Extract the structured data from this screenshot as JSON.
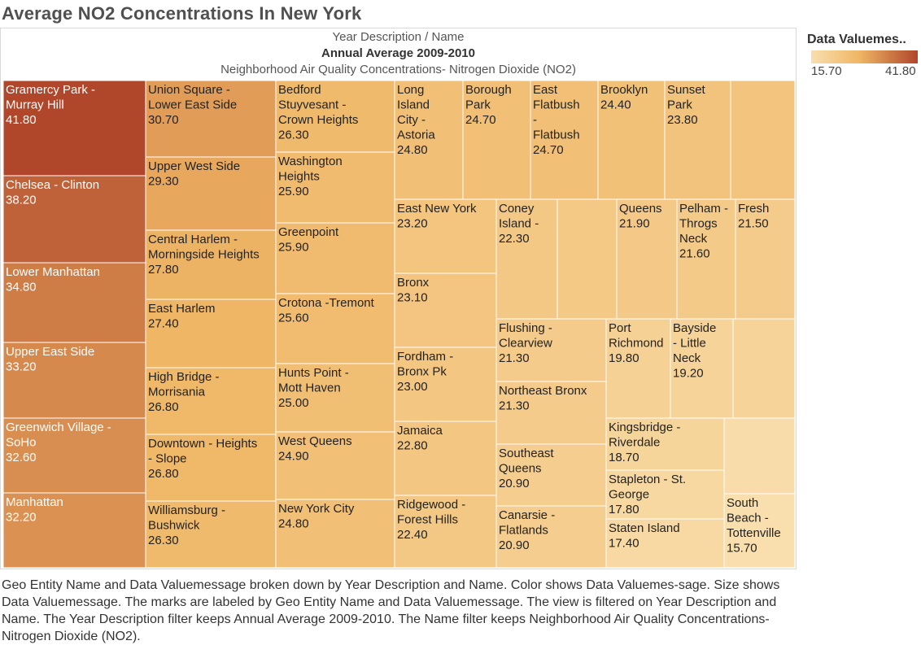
{
  "title": "Average NO2 Concentrations In New York",
  "header": {
    "line1": "Year Description  /  Name",
    "line2": "Annual Average 2009-2010",
    "line3": "Neighborhood Air Quality Concentrations- Nitrogen Dioxide (NO2)"
  },
  "legend": {
    "title": "Data Valuemes..",
    "min": "15.70",
    "max": "41.80"
  },
  "caption": "Geo Entity Name and Data Valuemessage broken down by Year Description and Name.  Color shows Data Valuemes-sage.  Size shows Data Valuemessage.  The marks are labeled by Geo Entity Name and Data Valuemessage. The view is filtered on Year Description and Name. The Year Description filter keeps Annual Average 2009-2010. The Name filter keeps Neighborhood Air Quality Concentrations- Nitrogen Dioxide (NO2).",
  "chart_data": {
    "type": "treemap",
    "color_scale": {
      "min": 15.7,
      "max": 41.8,
      "colors": [
        "#f9dfae",
        "#efb665",
        "#b0462a"
      ]
    },
    "cells": [
      {
        "name": "Gramercy Park - Murray Hill",
        "value": 41.8
      },
      {
        "name": "Chelsea - Clinton",
        "value": 38.2
      },
      {
        "name": "Lower Manhattan",
        "value": 34.8
      },
      {
        "name": "Upper East Side",
        "value": 33.2
      },
      {
        "name": "Greenwich Village - SoHo",
        "value": 32.6
      },
      {
        "name": "Manhattan",
        "value": 32.2
      },
      {
        "name": "Union Square - Lower East Side",
        "value": 30.7
      },
      {
        "name": "Upper West Side",
        "value": 29.3
      },
      {
        "name": "Central Harlem - Morningside Heights",
        "value": 27.8
      },
      {
        "name": "East Harlem",
        "value": 27.4
      },
      {
        "name": "High Bridge - Morrisania",
        "value": 26.8
      },
      {
        "name": "Downtown - Heights - Slope",
        "value": 26.8
      },
      {
        "name": "Williamsburg - Bushwick",
        "value": 26.3
      },
      {
        "name": "Bedford Stuyvesant - Crown Heights",
        "value": 26.3
      },
      {
        "name": "Washington Heights",
        "value": 25.9
      },
      {
        "name": "Greenpoint",
        "value": 25.9
      },
      {
        "name": "Crotona -Tremont",
        "value": 25.6
      },
      {
        "name": "Hunts Point - Mott Haven",
        "value": 25.0
      },
      {
        "name": "West Queens",
        "value": 24.9
      },
      {
        "name": "New York City",
        "value": 24.8
      },
      {
        "name": "Long Island City - Astoria",
        "value": 24.8
      },
      {
        "name": "Borough Park",
        "value": 24.7
      },
      {
        "name": "East Flatbush - Flatbush",
        "value": 24.7
      },
      {
        "name": "Brooklyn",
        "value": 24.4
      },
      {
        "name": "Sunset Park",
        "value": 23.8
      },
      {
        "name": "",
        "value": 23.5
      },
      {
        "name": "East New York",
        "value": 23.2
      },
      {
        "name": "Bronx",
        "value": 23.1
      },
      {
        "name": "Fordham - Bronx Pk",
        "value": 23.0
      },
      {
        "name": "Jamaica",
        "value": 22.8
      },
      {
        "name": "Ridgewood - Forest Hills",
        "value": 22.4
      },
      {
        "name": "Coney Island -",
        "value": 22.3
      },
      {
        "name": "",
        "value": 22.1
      },
      {
        "name": "Queens",
        "value": 21.9
      },
      {
        "name": "Pelham - Throgs Neck",
        "value": 21.6
      },
      {
        "name": "Fresh",
        "value": 21.5
      },
      {
        "name": "Flushing - Clearview",
        "value": 21.3
      },
      {
        "name": "Northeast Bronx",
        "value": 21.3
      },
      {
        "name": "Southeast Queens",
        "value": 20.9
      },
      {
        "name": "Canarsie - Flatlands",
        "value": 20.9
      },
      {
        "name": "Port Richmond",
        "value": 19.8
      },
      {
        "name": "Bayside - Little Neck",
        "value": 19.2
      },
      {
        "name": "",
        "value": 19.0
      },
      {
        "name": "Kingsbridge - Riverdale",
        "value": 18.7
      },
      {
        "name": "Stapleton - St. George",
        "value": 17.8
      },
      {
        "name": "Staten Island",
        "value": 17.4
      },
      {
        "name": "",
        "value": 16.5
      },
      {
        "name": "South Beach - Tottenville",
        "value": 15.7
      }
    ]
  }
}
